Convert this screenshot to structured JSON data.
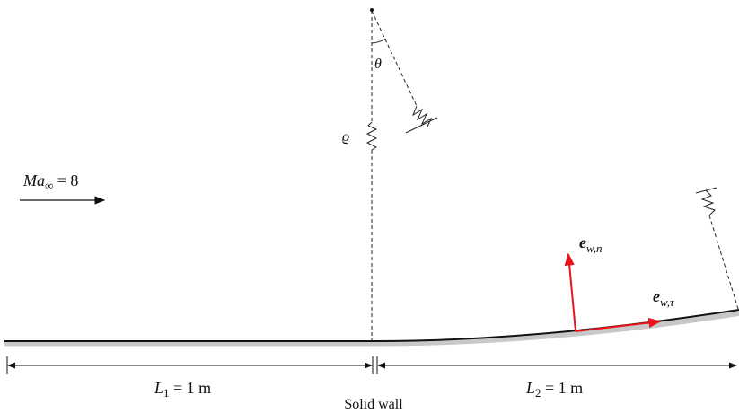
{
  "flow": {
    "mach_symbol": "Ma",
    "mach_subscript": "∞",
    "mach_rest": " = 8"
  },
  "symbols": {
    "theta": "θ",
    "rho": "ϱ"
  },
  "vectors": {
    "normal": {
      "base": "e",
      "sub": "w,n"
    },
    "tangent": {
      "base": "e",
      "sub": "w,τ"
    }
  },
  "dimensions": {
    "first": {
      "symbol": "L",
      "sub": "1",
      "rest": " = 1 m"
    },
    "second": {
      "symbol": "L",
      "sub": "2",
      "rest": " = 1 m"
    }
  },
  "wall_label": "Solid wall",
  "colors": {
    "wall": "#111111",
    "wall_shadow": "#c8c8c8",
    "vector": "#e8141b",
    "line": "#222222"
  }
}
